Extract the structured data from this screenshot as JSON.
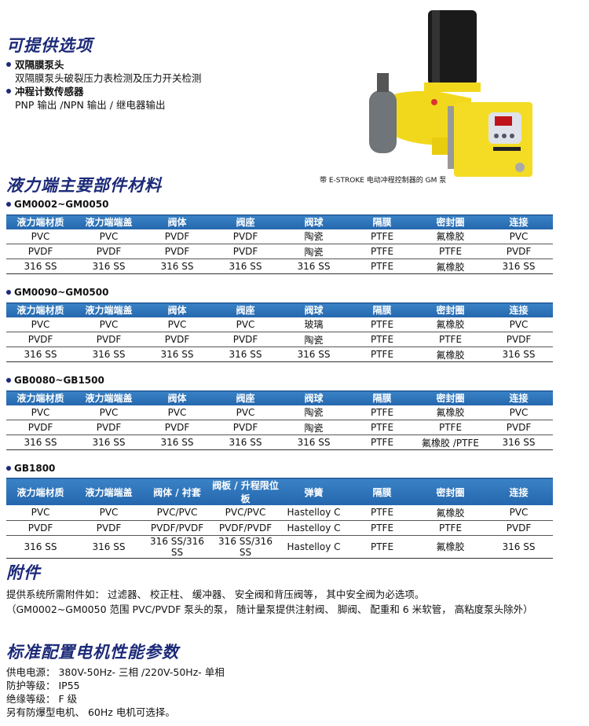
{
  "options": {
    "title": "可提供选项",
    "items": [
      {
        "label": "双隔膜泵头",
        "desc": "双隔膜泵头破裂压力表检测及压力开关检测"
      },
      {
        "label": "冲程计数传感器",
        "desc": "PNP 输出 /NPN 输出 / 继电器输出"
      }
    ]
  },
  "photo": {
    "caption": "带 E-STROKE 电动冲程控制器的 GM 泵",
    "brand": "E-STROKE"
  },
  "materials": {
    "title": "液力端主要部件材料",
    "tables": [
      {
        "model": "GM0002~GM0050",
        "headers": [
          "液力端材质",
          "液力端端盖",
          "阀体",
          "阀座",
          "阀球",
          "隔膜",
          "密封圈",
          "连接"
        ],
        "rows": [
          [
            "PVC",
            "PVC",
            "PVDF",
            "PVDF",
            "陶瓷",
            "PTFE",
            "氟橡胶",
            "PVC"
          ],
          [
            "PVDF",
            "PVDF",
            "PVDF",
            "PVDF",
            "陶瓷",
            "PTFE",
            "PTFE",
            "PVDF"
          ],
          [
            "316 SS",
            "316 SS",
            "316 SS",
            "316 SS",
            "316 SS",
            "PTFE",
            "氟橡胶",
            "316 SS"
          ]
        ]
      },
      {
        "model": "GM0090~GM0500",
        "headers": [
          "液力端材质",
          "液力端端盖",
          "阀体",
          "阀座",
          "阀球",
          "隔膜",
          "密封圈",
          "连接"
        ],
        "rows": [
          [
            "PVC",
            "PVC",
            "PVC",
            "PVC",
            "玻璃",
            "PTFE",
            "氟橡胶",
            "PVC"
          ],
          [
            "PVDF",
            "PVDF",
            "PVDF",
            "PVDF",
            "陶瓷",
            "PTFE",
            "PTFE",
            "PVDF"
          ],
          [
            "316 SS",
            "316 SS",
            "316 SS",
            "316 SS",
            "316 SS",
            "PTFE",
            "氟橡胶",
            "316 SS"
          ]
        ]
      },
      {
        "model": "GB0080~GB1500",
        "headers": [
          "液力端材质",
          "液力端端盖",
          "阀体",
          "阀座",
          "阀球",
          "隔膜",
          "密封圈",
          "连接"
        ],
        "rows": [
          [
            "PVC",
            "PVC",
            "PVC",
            "PVC",
            "陶瓷",
            "PTFE",
            "氟橡胶",
            "PVC"
          ],
          [
            "PVDF",
            "PVDF",
            "PVDF",
            "PVDF",
            "陶瓷",
            "PTFE",
            "PTFE",
            "PVDF"
          ],
          [
            "316 SS",
            "316 SS",
            "316 SS",
            "316 SS",
            "316 SS",
            "PTFE",
            "氟橡胶 /PTFE",
            "316 SS"
          ]
        ]
      },
      {
        "model": "GB1800",
        "headers": [
          "液力端材质",
          "液力端端盖",
          "阀体 / 衬套",
          "阀板 / 升程限位板",
          "弹簧",
          "隔膜",
          "密封圈",
          "连接"
        ],
        "rows": [
          [
            "PVC",
            "PVC",
            "PVC/PVC",
            "PVC/PVC",
            "Hastelloy C",
            "PTFE",
            "氟橡胶",
            "PVC"
          ],
          [
            "PVDF",
            "PVDF",
            "PVDF/PVDF",
            "PVDF/PVDF",
            "Hastelloy C",
            "PTFE",
            "PTFE",
            "PVDF"
          ],
          [
            "316 SS",
            "316 SS",
            "316 SS/316 SS",
            "316 SS/316 SS",
            "Hastelloy C",
            "PTFE",
            "氟橡胶",
            "316 SS"
          ]
        ]
      }
    ]
  },
  "accessories": {
    "title": "附件",
    "lines": [
      "提供系统所需附件如： 过滤器、 校正柱、 缓冲器、 安全阀和背压阀等， 其中安全阀为必选项。",
      "（GM0002~GM0050 范围 PVC/PVDF 泵头的泵， 随计量泵提供注射阀、 脚阀、 配重和 6 米软管， 高粘度泵头除外）"
    ]
  },
  "motor": {
    "title": "标准配置电机性能参数",
    "lines": [
      "供电电源： 380V-50Hz- 三相 /220V-50Hz- 单相",
      "防护等级： IP55",
      "绝缘等级： F 级",
      "另有防爆型电机、 60Hz 电机可选择。"
    ]
  },
  "colors": {
    "heading": "#1c2a78",
    "table_header": "#2a6fb5",
    "pump": "#f2d81c"
  }
}
